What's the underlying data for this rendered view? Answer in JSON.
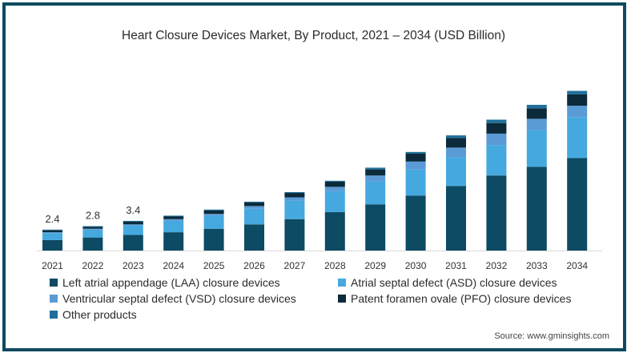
{
  "chart_data": {
    "type": "bar",
    "stacked": true,
    "title": "Heart Closure Devices Market, By Product, 2021 – 2034 (USD Billion)",
    "xlabel": "",
    "ylabel": "",
    "ylim": [
      0,
      20
    ],
    "grid": false,
    "legend_position": "bottom",
    "categories": [
      "2021",
      "2022",
      "2023",
      "2024",
      "2025",
      "2026",
      "2027",
      "2028",
      "2029",
      "2030",
      "2031",
      "2032",
      "2033",
      "2034"
    ],
    "series": [
      {
        "name": "Left atrial appendage (LAA) closure devices",
        "color": "#0d4a63",
        "values": [
          1.2,
          1.5,
          1.8,
          2.1,
          2.5,
          3.0,
          3.6,
          4.4,
          5.3,
          6.3,
          7.4,
          8.6,
          9.6,
          10.6
        ]
      },
      {
        "name": "Atrial septal defect (ASD) closure devices",
        "color": "#45a9df",
        "values": [
          0.8,
          0.9,
          1.1,
          1.3,
          1.5,
          1.8,
          2.1,
          2.4,
          2.6,
          3.0,
          3.3,
          3.5,
          4.2,
          4.7
        ]
      },
      {
        "name": "Ventricular septal defect (VSD) closure devices",
        "color": "#5b9bd5",
        "values": [
          0.1,
          0.1,
          0.1,
          0.2,
          0.2,
          0.3,
          0.4,
          0.5,
          0.7,
          0.9,
          1.1,
          1.3,
          1.3,
          1.3
        ]
      },
      {
        "name": "Patent foramen ovale (PFO) closure devices",
        "color": "#0b2a3a",
        "values": [
          0.2,
          0.2,
          0.3,
          0.3,
          0.4,
          0.4,
          0.5,
          0.6,
          0.7,
          0.9,
          1.1,
          1.2,
          1.2,
          1.3
        ]
      },
      {
        "name": "Other products",
        "color": "#1f6f9a",
        "values": [
          0.1,
          0.1,
          0.1,
          0.1,
          0.1,
          0.1,
          0.1,
          0.1,
          0.2,
          0.2,
          0.3,
          0.4,
          0.4,
          0.4
        ]
      }
    ],
    "totals": [
      2.4,
      2.8,
      3.4,
      4.0,
      4.7,
      5.6,
      6.7,
      8.0,
      9.5,
      11.3,
      13.2,
      15.0,
      16.7,
      18.3
    ],
    "data_labels": [
      {
        "category": "2021",
        "text": "2.4"
      },
      {
        "category": "2022",
        "text": "2.8"
      },
      {
        "category": "2023",
        "text": "3.4"
      }
    ],
    "source": "Source: www.gminsights.com"
  },
  "legend": [
    {
      "label": "Left atrial appendage (LAA) closure devices",
      "color": "#0d4a63"
    },
    {
      "label": "Atrial septal defect (ASD) closure devices",
      "color": "#45a9df"
    },
    {
      "label": "Ventricular septal defect (VSD) closure devices",
      "color": "#5b9bd5"
    },
    {
      "label": "Patent foramen ovale (PFO) closure devices",
      "color": "#0b2a3a"
    },
    {
      "label": "Other products",
      "color": "#1f6f9a"
    }
  ]
}
